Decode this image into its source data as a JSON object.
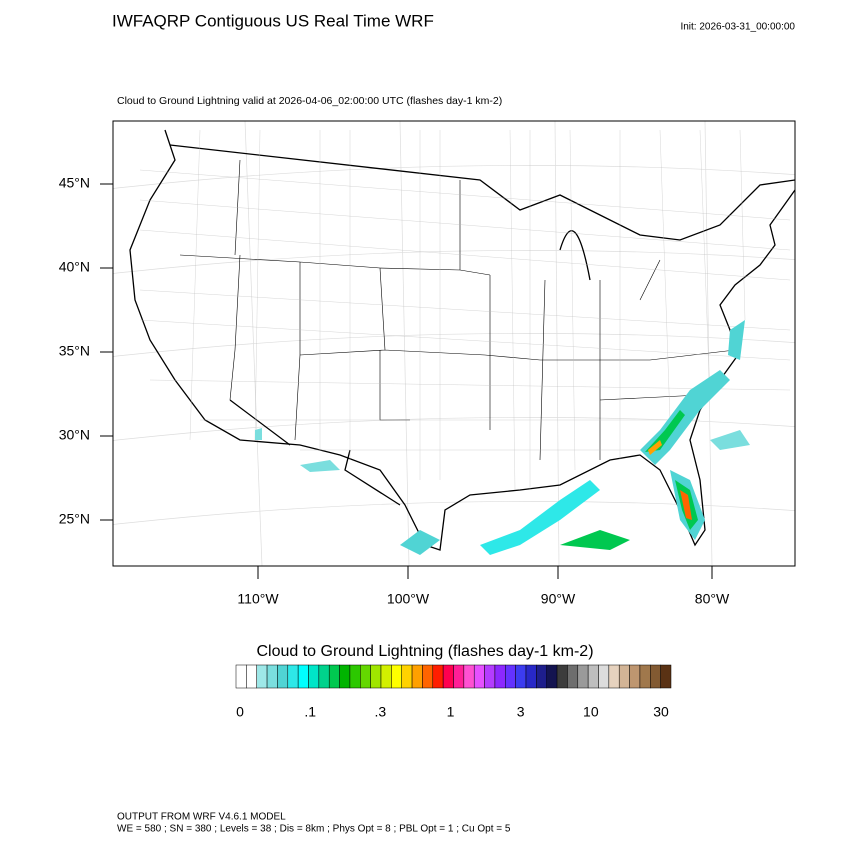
{
  "header": {
    "title": "IWFAQRP Contiguous US Real Time WRF",
    "init": "Init: 2026-03-31_00:00:00"
  },
  "map": {
    "subtitle": "Cloud to Ground Lightning valid at 2026-04-06_02:00:00 UTC   (flashes day-1 km-2)",
    "lat_labels": [
      "45°N",
      "40°N",
      "35°N",
      "30°N",
      "25°N"
    ],
    "lon_labels": [
      "110°W",
      "100°W",
      "90°W",
      "80°W"
    ]
  },
  "legend": {
    "title": "Cloud to Ground Lightning  (flashes day-1 km-2)",
    "labels": [
      "0",
      ".1",
      ".3",
      "1",
      "3",
      "10",
      "30"
    ],
    "colors": [
      "#ffffff",
      "#ffffff",
      "#9ee8e8",
      "#7adede",
      "#50d4d4",
      "#2ee8e8",
      "#00ffff",
      "#00e6c8",
      "#00d28c",
      "#00c850",
      "#00b400",
      "#2cc800",
      "#64d700",
      "#a0e600",
      "#d2f000",
      "#ffff00",
      "#ffd200",
      "#ffa000",
      "#ff6400",
      "#ff1e00",
      "#ff0050",
      "#ff1e96",
      "#ff50d2",
      "#e650ff",
      "#b43cff",
      "#8c28ff",
      "#6432ff",
      "#3c3cf0",
      "#2828c8",
      "#1e1e8c",
      "#141450",
      "#3c3c3c",
      "#6e6e6e",
      "#9a9a9a",
      "#bebebe",
      "#dcdcdc",
      "#e6d2be",
      "#d2b496",
      "#be9670",
      "#a0784c",
      "#825a32",
      "#5a3214"
    ]
  },
  "footer": {
    "line1": "OUTPUT FROM WRF V4.6.1 MODEL",
    "line2": "WE = 580 ; SN = 380 ; Levels = 38 ; Dis = 8km ; Phys Opt = 8 ; PBL Opt = 1 ; Cu Opt = 5"
  }
}
